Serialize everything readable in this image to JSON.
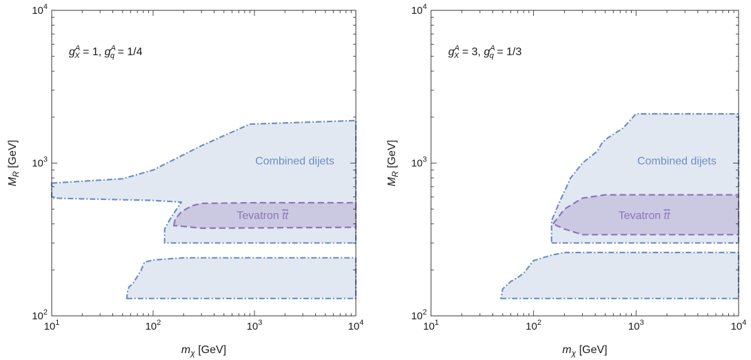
{
  "chart_data": [
    {
      "type": "area",
      "panel": "left",
      "annotation": {
        "g_X": "g",
        "X_sub": "X",
        "A_sup": "A",
        "val1": " = 1, ",
        "g_q": "g",
        "q_sub": "q",
        "val2": " = 1/4"
      },
      "xlabel": {
        "main": "m",
        "sub": "χ",
        "unit": " [GeV]"
      },
      "ylabel": {
        "main": "M",
        "sub": "R",
        "unit": " [GeV]"
      },
      "xscale": "log",
      "yscale": "log",
      "xlim": [
        10,
        10000
      ],
      "ylim": [
        100,
        10000
      ],
      "xticks": [
        {
          "base": "10",
          "exp": "1"
        },
        {
          "base": "10",
          "exp": "2"
        },
        {
          "base": "10",
          "exp": "3"
        },
        {
          "base": "10",
          "exp": "4"
        }
      ],
      "yticks": [
        {
          "base": "10",
          "exp": "2"
        },
        {
          "base": "10",
          "exp": "3"
        },
        {
          "base": "10",
          "exp": "4"
        }
      ],
      "grid": false,
      "regions": [
        {
          "name": "Combined dijets",
          "label": "Combined dijets",
          "label_at": {
            "x": 2500,
            "y": 980
          },
          "color": "#6b8fc4",
          "fill": "#dde4f0",
          "style": "dotdash",
          "polygons": [
            [
              [
                10,
                740
              ],
              [
                50,
                790
              ],
              [
                100,
                900
              ],
              [
                300,
                1300
              ],
              [
                900,
                1800
              ],
              [
                10000,
                1900
              ],
              [
                10000,
                300
              ],
              [
                130,
                300
              ],
              [
                130,
                370
              ],
              [
                150,
                440
              ],
              [
                190,
                555
              ],
              [
                100,
                570
              ],
              [
                10,
                590
              ]
            ],
            [
              [
                55,
                130
              ],
              [
                10000,
                130
              ],
              [
                10000,
                240
              ],
              [
                200,
                240
              ],
              [
                100,
                232
              ],
              [
                90,
                228
              ],
              [
                82,
                224
              ],
              [
                76,
                198
              ],
              [
                68,
                176
              ],
              [
                63,
                162
              ],
              [
                58,
                155
              ],
              [
                56,
                145
              ]
            ]
          ]
        },
        {
          "name": "Tevatron tt",
          "label": "Tevatron ",
          "label_tt": "tt",
          "label_at": {
            "x": 1200,
            "y": 430
          },
          "color": "#8b74b8",
          "fill": "#c7c3de",
          "style": "dashed",
          "polygons": [
            [
              [
                160,
                390
              ],
              [
                165,
                430
              ],
              [
                190,
                480
              ],
              [
                240,
                525
              ],
              [
                300,
                545
              ],
              [
                1000,
                550
              ],
              [
                10000,
                550
              ],
              [
                10000,
                380
              ],
              [
                300,
                375
              ],
              [
                200,
                385
              ]
            ]
          ]
        }
      ]
    },
    {
      "type": "area",
      "panel": "right",
      "annotation": {
        "g_X": "g",
        "X_sub": "X",
        "A_sup": "A",
        "val1": " = 3, ",
        "g_q": "g",
        "q_sub": "q",
        "val2": " = 1/3"
      },
      "xlabel": {
        "main": "m",
        "sub": "χ",
        "unit": " [GeV]"
      },
      "ylabel": {
        "main": "M",
        "sub": "R",
        "unit": " [GeV]"
      },
      "xscale": "log",
      "yscale": "log",
      "xlim": [
        10,
        10000
      ],
      "ylim": [
        100,
        10000
      ],
      "xticks": [
        {
          "base": "10",
          "exp": "1"
        },
        {
          "base": "10",
          "exp": "2"
        },
        {
          "base": "10",
          "exp": "3"
        },
        {
          "base": "10",
          "exp": "4"
        }
      ],
      "yticks": [
        {
          "base": "10",
          "exp": "2"
        },
        {
          "base": "10",
          "exp": "3"
        },
        {
          "base": "10",
          "exp": "4"
        }
      ],
      "grid": false,
      "regions": [
        {
          "name": "Combined dijets",
          "label": "Combined dijets",
          "label_at": {
            "x": 2500,
            "y": 980
          },
          "color": "#6b8fc4",
          "fill": "#dde4f0",
          "style": "dotdash",
          "polygons": [
            [
              [
                150,
                300
              ],
              [
                10000,
                300
              ],
              [
                10000,
                2100
              ],
              [
                1000,
                2100
              ],
              [
                750,
                1700
              ],
              [
                520,
                1450
              ],
              [
                470,
                1370
              ],
              [
                420,
                1200
              ],
              [
                300,
                1000
              ],
              [
                230,
                800
              ],
              [
                210,
                700
              ],
              [
                180,
                560
              ],
              [
                150,
                420
              ]
            ],
            [
              [
                48,
                130
              ],
              [
                10000,
                130
              ],
              [
                10000,
                260
              ],
              [
                200,
                260
              ],
              [
                150,
                250
              ],
              [
                100,
                230
              ],
              [
                80,
                190
              ],
              [
                70,
                178
              ],
              [
                60,
                168
              ],
              [
                50,
                150
              ]
            ]
          ]
        },
        {
          "name": "Tevatron tt",
          "label": "Tevatron ",
          "label_tt": "tt",
          "label_at": {
            "x": 1200,
            "y": 430
          },
          "color": "#8b74b8",
          "fill": "#c7c3de",
          "style": "dashed",
          "polygons": [
            [
              [
                155,
                400
              ],
              [
                200,
                500
              ],
              [
                300,
                590
              ],
              [
                500,
                620
              ],
              [
                10000,
                620
              ],
              [
                10000,
                340
              ],
              [
                300,
                340
              ],
              [
                200,
                370
              ]
            ]
          ]
        }
      ]
    }
  ]
}
